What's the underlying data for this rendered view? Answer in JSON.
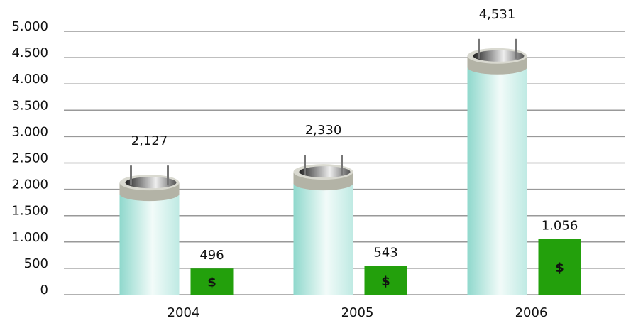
{
  "chart_data": {
    "type": "bar",
    "categories": [
      "2004",
      "2005",
      "2006"
    ],
    "series": [
      {
        "color": "#aee6dc",
        "values": [
          2127,
          2330,
          4531
        ],
        "value_labels": [
          "2,127",
          "2,330",
          "4,531"
        ]
      },
      {
        "color": "#23a00c",
        "values": [
          496,
          543,
          1056
        ],
        "value_labels": [
          "496",
          "543",
          "1.056"
        ],
        "symbol": "$"
      }
    ],
    "ylim": [
      0,
      5000
    ],
    "yticks": [
      0,
      500,
      {
        "value": 1000,
        "label": "1.000"
      },
      {
        "value": 1500,
        "label": "1.500"
      },
      {
        "value": 2000,
        "label": "2.000"
      },
      {
        "value": 2500,
        "label": "2.500"
      },
      {
        "value": 3000,
        "label": "3.000"
      },
      {
        "value": 3500,
        "label": "3.500"
      },
      {
        "value": 4000,
        "label": "4.000"
      },
      {
        "value": 4500,
        "label": "4.500"
      },
      {
        "value": 5000,
        "label": "5.000"
      }
    ],
    "grid": true
  }
}
